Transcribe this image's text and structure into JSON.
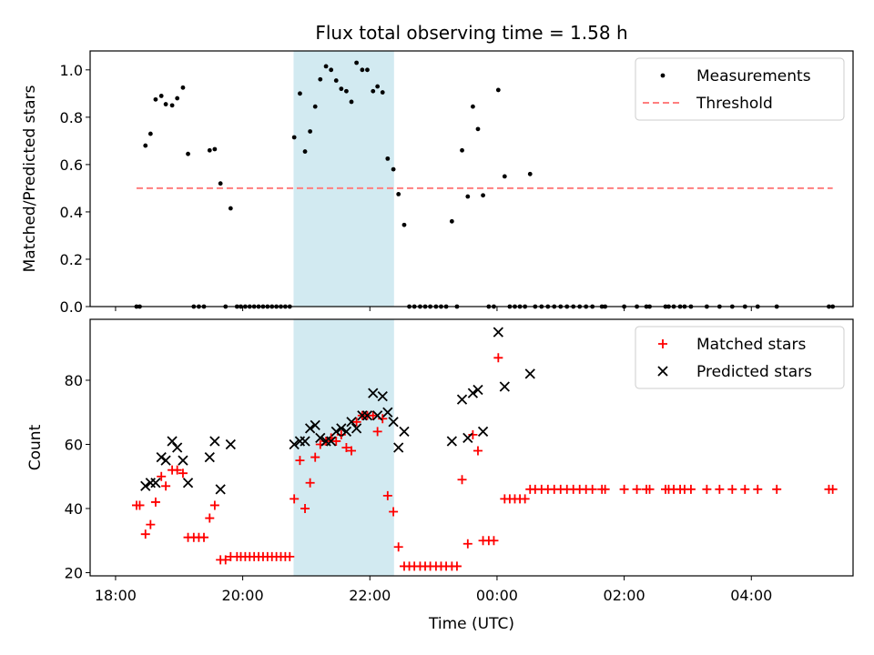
{
  "title": "Flux total observing time = 1.58 h",
  "x_axis": {
    "label": "Time (UTC)",
    "range_hours": [
      -0.4,
      11.6
    ],
    "ticks": [
      {
        "hour": 0,
        "label": "18:00"
      },
      {
        "hour": 2,
        "label": "20:00"
      },
      {
        "hour": 4,
        "label": "22:00"
      },
      {
        "hour": 6,
        "label": "00:00"
      },
      {
        "hour": 8,
        "label": "02:00"
      },
      {
        "hour": 10,
        "label": "04:00"
      }
    ]
  },
  "highlight_band": {
    "start_hour": 2.8,
    "end_hour": 4.38,
    "color": "#add8e6"
  },
  "chart_data": [
    {
      "type": "scatter",
      "ylabel": "Matched/Predicted stars",
      "ylim": [
        0,
        1.08
      ],
      "yticks": [
        {
          "value": 0.0,
          "label": "0.0"
        },
        {
          "value": 0.2,
          "label": "0.2"
        },
        {
          "value": 0.4,
          "label": "0.4"
        },
        {
          "value": 0.6,
          "label": "0.6"
        },
        {
          "value": 0.8,
          "label": "0.8"
        },
        {
          "value": 1.0,
          "label": "1.0"
        }
      ],
      "legend_position": "top-right",
      "series": [
        {
          "name": "Measurements",
          "marker": "dot",
          "color": "#000000",
          "points": [
            [
              0.33,
              0
            ],
            [
              0.38,
              0
            ],
            [
              0.47,
              0.68
            ],
            [
              0.55,
              0.73
            ],
            [
              0.63,
              0.875
            ],
            [
              0.72,
              0.89
            ],
            [
              0.79,
              0.855
            ],
            [
              0.89,
              0.85
            ],
            [
              0.97,
              0.88
            ],
            [
              1.06,
              0.925
            ],
            [
              1.14,
              0.645
            ],
            [
              1.23,
              0
            ],
            [
              1.31,
              0
            ],
            [
              1.39,
              0
            ],
            [
              1.48,
              0.66
            ],
            [
              1.56,
              0.665
            ],
            [
              1.65,
              0.52
            ],
            [
              1.73,
              0
            ],
            [
              1.81,
              0.415
            ],
            [
              1.91,
              0
            ],
            [
              1.97,
              0
            ],
            [
              2.04,
              0
            ],
            [
              2.11,
              0
            ],
            [
              2.18,
              0
            ],
            [
              2.25,
              0
            ],
            [
              2.32,
              0
            ],
            [
              2.39,
              0
            ],
            [
              2.46,
              0
            ],
            [
              2.53,
              0
            ],
            [
              2.6,
              0
            ],
            [
              2.67,
              0
            ],
            [
              2.74,
              0
            ],
            [
              2.81,
              0.715
            ],
            [
              2.9,
              0.9
            ],
            [
              2.98,
              0.655
            ],
            [
              3.06,
              0.74
            ],
            [
              3.14,
              0.845
            ],
            [
              3.22,
              0.96
            ],
            [
              3.31,
              1.015
            ],
            [
              3.39,
              1.0
            ],
            [
              3.47,
              0.955
            ],
            [
              3.55,
              0.92
            ],
            [
              3.63,
              0.91
            ],
            [
              3.71,
              0.865
            ],
            [
              3.79,
              1.03
            ],
            [
              3.88,
              1.0
            ],
            [
              3.96,
              1.0
            ],
            [
              4.05,
              0.91
            ],
            [
              4.12,
              0.93
            ],
            [
              4.2,
              0.905
            ],
            [
              4.28,
              0.625
            ],
            [
              4.37,
              0.58
            ],
            [
              4.45,
              0.475
            ],
            [
              4.54,
              0.345
            ],
            [
              4.62,
              0
            ],
            [
              4.7,
              0
            ],
            [
              4.79,
              0
            ],
            [
              4.87,
              0
            ],
            [
              4.95,
              0
            ],
            [
              5.04,
              0
            ],
            [
              5.12,
              0
            ],
            [
              5.2,
              0
            ],
            [
              5.29,
              0.36
            ],
            [
              5.37,
              0
            ],
            [
              5.45,
              0.66
            ],
            [
              5.54,
              0.465
            ],
            [
              5.62,
              0.845
            ],
            [
              5.7,
              0.75
            ],
            [
              5.78,
              0.47
            ],
            [
              5.87,
              0
            ],
            [
              5.95,
              0
            ],
            [
              6.02,
              0.915
            ],
            [
              6.12,
              0.55
            ],
            [
              6.2,
              0
            ],
            [
              6.28,
              0
            ],
            [
              6.36,
              0
            ],
            [
              6.44,
              0
            ],
            [
              6.52,
              0.56
            ],
            [
              6.6,
              0
            ],
            [
              6.7,
              0
            ],
            [
              6.8,
              0
            ],
            [
              6.9,
              0
            ],
            [
              7.0,
              0
            ],
            [
              7.1,
              0
            ],
            [
              7.2,
              0
            ],
            [
              7.3,
              0
            ],
            [
              7.4,
              0
            ],
            [
              7.5,
              0
            ],
            [
              7.65,
              0
            ],
            [
              7.7,
              0
            ],
            [
              8.0,
              0
            ],
            [
              8.2,
              0
            ],
            [
              8.35,
              0
            ],
            [
              8.4,
              0
            ],
            [
              8.65,
              0
            ],
            [
              8.7,
              0
            ],
            [
              8.78,
              0
            ],
            [
              8.88,
              0
            ],
            [
              8.95,
              0
            ],
            [
              9.05,
              0
            ],
            [
              9.3,
              0
            ],
            [
              9.5,
              0
            ],
            [
              9.7,
              0
            ],
            [
              9.9,
              0
            ],
            [
              10.1,
              0
            ],
            [
              10.4,
              0
            ],
            [
              11.22,
              0
            ],
            [
              11.28,
              0
            ]
          ]
        },
        {
          "name": "Threshold",
          "marker": "dashed-line",
          "color": "#ff7f7f",
          "points": [
            [
              0.33,
              0.5
            ],
            [
              11.28,
              0.5
            ]
          ]
        }
      ]
    },
    {
      "type": "scatter",
      "ylabel": "Count",
      "ylim": [
        19,
        99
      ],
      "yticks": [
        {
          "value": 20,
          "label": "20"
        },
        {
          "value": 40,
          "label": "40"
        },
        {
          "value": 60,
          "label": "60"
        },
        {
          "value": 80,
          "label": "80"
        }
      ],
      "legend_position": "top-right",
      "series": [
        {
          "name": "Matched stars",
          "marker": "plus",
          "color": "#ff0000",
          "points": [
            [
              0.33,
              41
            ],
            [
              0.38,
              41
            ],
            [
              0.47,
              32
            ],
            [
              0.55,
              35
            ],
            [
              0.63,
              42
            ],
            [
              0.72,
              50
            ],
            [
              0.79,
              47
            ],
            [
              0.89,
              52
            ],
            [
              0.97,
              52
            ],
            [
              1.06,
              51
            ],
            [
              1.14,
              31
            ],
            [
              1.23,
              31
            ],
            [
              1.31,
              31
            ],
            [
              1.39,
              31
            ],
            [
              1.48,
              37
            ],
            [
              1.56,
              41
            ],
            [
              1.65,
              24
            ],
            [
              1.73,
              24
            ],
            [
              1.81,
              25
            ],
            [
              1.91,
              25
            ],
            [
              1.97,
              25
            ],
            [
              2.04,
              25
            ],
            [
              2.11,
              25
            ],
            [
              2.18,
              25
            ],
            [
              2.25,
              25
            ],
            [
              2.32,
              25
            ],
            [
              2.39,
              25
            ],
            [
              2.46,
              25
            ],
            [
              2.53,
              25
            ],
            [
              2.6,
              25
            ],
            [
              2.67,
              25
            ],
            [
              2.74,
              25
            ],
            [
              2.81,
              43
            ],
            [
              2.9,
              55
            ],
            [
              2.98,
              40
            ],
            [
              3.06,
              48
            ],
            [
              3.14,
              56
            ],
            [
              3.22,
              60
            ],
            [
              3.31,
              61
            ],
            [
              3.39,
              62
            ],
            [
              3.47,
              61
            ],
            [
              3.55,
              63
            ],
            [
              3.63,
              59
            ],
            [
              3.71,
              58
            ],
            [
              3.79,
              67
            ],
            [
              3.88,
              69
            ],
            [
              3.96,
              69
            ],
            [
              4.05,
              69
            ],
            [
              4.12,
              64
            ],
            [
              4.2,
              68
            ],
            [
              4.28,
              44
            ],
            [
              4.37,
              39
            ],
            [
              4.45,
              28
            ],
            [
              4.54,
              22
            ],
            [
              4.62,
              22
            ],
            [
              4.7,
              22
            ],
            [
              4.79,
              22
            ],
            [
              4.87,
              22
            ],
            [
              4.95,
              22
            ],
            [
              5.04,
              22
            ],
            [
              5.12,
              22
            ],
            [
              5.2,
              22
            ],
            [
              5.29,
              22
            ],
            [
              5.37,
              22
            ],
            [
              5.45,
              49
            ],
            [
              5.54,
              29
            ],
            [
              5.62,
              63
            ],
            [
              5.7,
              58
            ],
            [
              5.78,
              30
            ],
            [
              5.87,
              30
            ],
            [
              5.95,
              30
            ],
            [
              6.02,
              87
            ],
            [
              6.12,
              43
            ],
            [
              6.2,
              43
            ],
            [
              6.28,
              43
            ],
            [
              6.36,
              43
            ],
            [
              6.44,
              43
            ],
            [
              6.52,
              46
            ],
            [
              6.6,
              46
            ],
            [
              6.7,
              46
            ],
            [
              6.8,
              46
            ],
            [
              6.9,
              46
            ],
            [
              7.0,
              46
            ],
            [
              7.1,
              46
            ],
            [
              7.2,
              46
            ],
            [
              7.3,
              46
            ],
            [
              7.4,
              46
            ],
            [
              7.5,
              46
            ],
            [
              7.65,
              46
            ],
            [
              7.7,
              46
            ],
            [
              8.0,
              46
            ],
            [
              8.2,
              46
            ],
            [
              8.35,
              46
            ],
            [
              8.4,
              46
            ],
            [
              8.65,
              46
            ],
            [
              8.7,
              46
            ],
            [
              8.78,
              46
            ],
            [
              8.88,
              46
            ],
            [
              8.95,
              46
            ],
            [
              9.05,
              46
            ],
            [
              9.3,
              46
            ],
            [
              9.5,
              46
            ],
            [
              9.7,
              46
            ],
            [
              9.9,
              46
            ],
            [
              10.1,
              46
            ],
            [
              10.4,
              46
            ],
            [
              11.22,
              46
            ],
            [
              11.28,
              46
            ]
          ]
        },
        {
          "name": "Predicted stars",
          "marker": "x",
          "color": "#000000",
          "points": [
            [
              0.47,
              47
            ],
            [
              0.55,
              48
            ],
            [
              0.63,
              48
            ],
            [
              0.72,
              56
            ],
            [
              0.79,
              55
            ],
            [
              0.89,
              61
            ],
            [
              0.97,
              59
            ],
            [
              1.06,
              55
            ],
            [
              1.14,
              48
            ],
            [
              1.48,
              56
            ],
            [
              1.56,
              61
            ],
            [
              1.65,
              46
            ],
            [
              1.81,
              60
            ],
            [
              2.81,
              60
            ],
            [
              2.9,
              61
            ],
            [
              2.98,
              61
            ],
            [
              3.06,
              65
            ],
            [
              3.14,
              66
            ],
            [
              3.22,
              62
            ],
            [
              3.31,
              61
            ],
            [
              3.39,
              61
            ],
            [
              3.47,
              64
            ],
            [
              3.55,
              65
            ],
            [
              3.63,
              64
            ],
            [
              3.71,
              67
            ],
            [
              3.79,
              65
            ],
            [
              3.88,
              69
            ],
            [
              3.96,
              69
            ],
            [
              4.05,
              76
            ],
            [
              4.12,
              69
            ],
            [
              4.2,
              75
            ],
            [
              4.28,
              70
            ],
            [
              4.37,
              67
            ],
            [
              4.45,
              59
            ],
            [
              4.54,
              64
            ],
            [
              5.29,
              61
            ],
            [
              5.45,
              74
            ],
            [
              5.54,
              62
            ],
            [
              5.62,
              76
            ],
            [
              5.7,
              77
            ],
            [
              5.78,
              64
            ],
            [
              6.02,
              95
            ],
            [
              6.12,
              78
            ],
            [
              6.52,
              82
            ]
          ]
        }
      ]
    }
  ]
}
